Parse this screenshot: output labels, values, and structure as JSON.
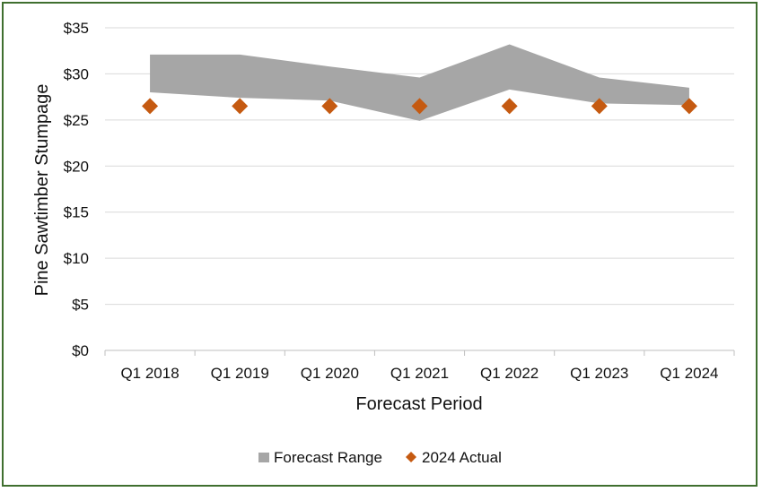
{
  "chart_data": {
    "type": "area",
    "categories": [
      "Q1 2018",
      "Q1 2019",
      "Q1 2020",
      "Q1 2021",
      "Q1 2022",
      "Q1 2023",
      "Q1 2024"
    ],
    "series": [
      {
        "name": "Forecast Range",
        "kind": "range-band",
        "low": [
          28.0,
          27.4,
          27.1,
          24.9,
          28.3,
          26.8,
          26.6
        ],
        "high": [
          32.1,
          32.1,
          30.8,
          29.6,
          33.2,
          29.6,
          28.5
        ],
        "color": "#a6a6a6"
      },
      {
        "name": "2024 Actual",
        "kind": "markers",
        "values": [
          26.5,
          26.5,
          26.5,
          26.5,
          26.5,
          26.5,
          26.5
        ],
        "color": "#c55a11"
      }
    ],
    "xlabel": "Forecast Period",
    "ylabel": "Pine Sawtimber Stumpage",
    "ylim": [
      0,
      35
    ],
    "yticks": [
      0,
      5,
      10,
      15,
      20,
      25,
      30,
      35
    ],
    "ytick_labels": [
      "$0",
      "$5",
      "$10",
      "$15",
      "$20",
      "$25",
      "$30",
      "$35"
    ],
    "grid": true,
    "legend_position": "bottom"
  },
  "colors": {
    "frame": "#3f6f2f",
    "grid": "#d9d9d9",
    "axis": "#bfbfbf"
  }
}
